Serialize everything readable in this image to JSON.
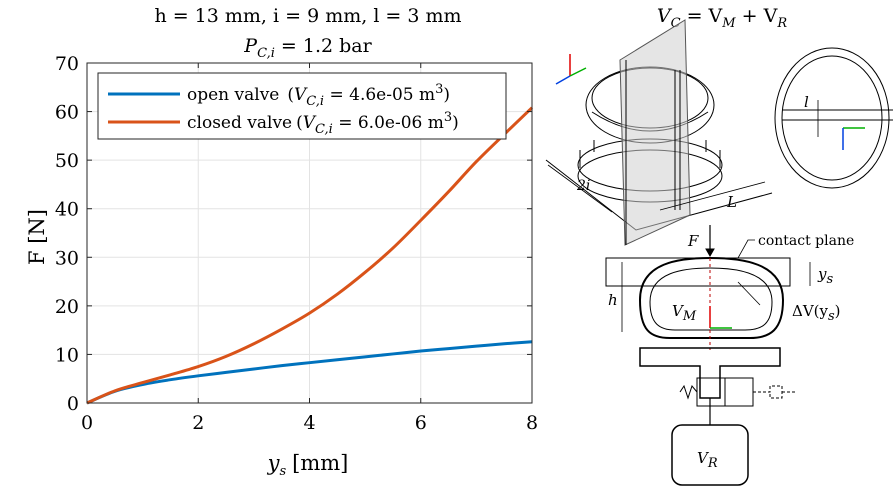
{
  "chart_data": {
    "type": "line",
    "title_line1": "h = 13 mm, i = 9 mm, l = 3 mm",
    "title_line2_main": "P",
    "title_line2_sub": "C,i",
    "title_line2_rest": " = 1.2 bar",
    "xlabel_main": "y",
    "xlabel_sub": "s",
    "xlabel_unit": "[mm]",
    "ylabel": "F [N]",
    "xlim": [
      0,
      8
    ],
    "ylim": [
      0,
      70
    ],
    "xticks": [
      0,
      2,
      4,
      6,
      8
    ],
    "yticks": [
      0,
      10,
      20,
      30,
      40,
      50,
      60,
      70
    ],
    "grid": true,
    "legend_position": "top-left",
    "series": [
      {
        "label_main": "open valve",
        "label_vc": "V",
        "label_vc_sub": "C,i",
        "label_value": " = 4.6e-05 m",
        "label_exp": "3",
        "color": "#0072BD",
        "x": [
          0,
          0.5,
          1,
          1.5,
          2,
          2.5,
          3,
          3.5,
          4,
          4.5,
          5,
          5.5,
          6,
          6.5,
          7,
          7.5,
          8
        ],
        "y": [
          0,
          2.4,
          3.8,
          4.8,
          5.6,
          6.3,
          7.0,
          7.7,
          8.3,
          8.9,
          9.5,
          10.1,
          10.7,
          11.2,
          11.7,
          12.2,
          12.6
        ]
      },
      {
        "label_main": "closed valve",
        "label_vc": "V",
        "label_vc_sub": "C,i",
        "label_value": " = 6.0e-06 m",
        "label_exp": "3",
        "color": "#D95319",
        "x": [
          0,
          0.5,
          1,
          1.5,
          2,
          2.5,
          3,
          3.5,
          4,
          4.5,
          5,
          5.5,
          6,
          6.5,
          7,
          7.5,
          8
        ],
        "y": [
          0,
          2.5,
          4.2,
          5.8,
          7.5,
          9.6,
          12.2,
          15.2,
          18.5,
          22.4,
          26.9,
          31.9,
          37.6,
          43.5,
          49.7,
          55.3,
          60.8
        ]
      }
    ]
  },
  "diagram": {
    "equation_main": "V",
    "equation_sub_c": "C",
    "equation_eq": " = V",
    "equation_sub_m": "M",
    "equation_plus": " + V",
    "equation_sub_r": "R",
    "label_2i": "2i",
    "label_L": "L",
    "label_l": "l",
    "label_F": "F",
    "label_contact_plane": "contact plane",
    "label_ys_main": "y",
    "label_ys_sub": "s",
    "label_h": "h",
    "label_vm_main": "V",
    "label_vm_sub": "M",
    "label_dv": "ΔV(y",
    "label_dv_sub": "s",
    "label_dv_close": ")",
    "label_vr_main": "V",
    "label_vr_sub": "R"
  },
  "colors": {
    "axis_red": "#e00000",
    "axis_green": "#00b000",
    "axis_blue": "#0040e0"
  }
}
